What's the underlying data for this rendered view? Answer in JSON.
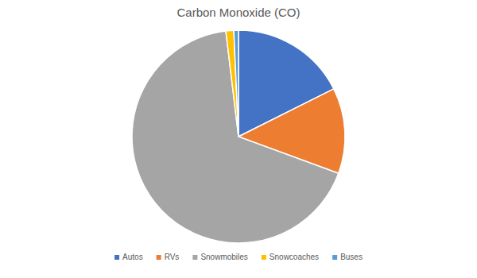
{
  "chart_data": {
    "type": "pie",
    "title": "Carbon Monoxide (CO)",
    "categories": [
      "Autos",
      "RVs",
      "Snowmobiles",
      "Snowcoaches",
      "Buses"
    ],
    "values": [
      17.6,
      13.0,
      67.5,
      1.2,
      0.7
    ],
    "colors": [
      "#4472c4",
      "#ed7d31",
      "#a5a5a5",
      "#ffc000",
      "#5b9bd5"
    ],
    "legend": "bottom"
  }
}
